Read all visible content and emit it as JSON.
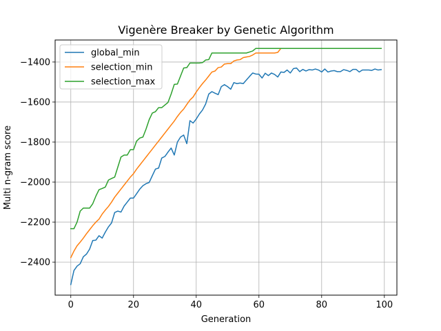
{
  "chart_data": {
    "type": "line",
    "title": "Vigenère Breaker by Genetic Algorithm",
    "xlabel": "Generation",
    "ylabel": "Multi n-gram score",
    "xlim": [
      -5,
      104
    ],
    "ylim": [
      -2565,
      -1290
    ],
    "xticks": [
      0,
      20,
      40,
      60,
      80,
      100
    ],
    "yticks": [
      -2400,
      -2200,
      -2000,
      -1800,
      -1600,
      -1400
    ],
    "xtick_labels": [
      "0",
      "20",
      "40",
      "60",
      "80",
      "100"
    ],
    "ytick_labels": [
      "−2400",
      "−2200",
      "−2000",
      "−1800",
      "−1600",
      "−1400"
    ],
    "grid": true,
    "legend_position": "top-left",
    "series": [
      {
        "name": "global_min",
        "color": "#1f77b4",
        "values": [
          -2512,
          -2442,
          -2420,
          -2408,
          -2373,
          -2360,
          -2335,
          -2292,
          -2290,
          -2268,
          -2280,
          -2250,
          -2224,
          -2204,
          -2152,
          -2145,
          -2150,
          -2120,
          -2100,
          -2080,
          -2080,
          -2058,
          -2035,
          -2018,
          -2008,
          -2002,
          -1968,
          -1935,
          -1930,
          -1880,
          -1872,
          -1850,
          -1830,
          -1865,
          -1800,
          -1775,
          -1765,
          -1808,
          -1693,
          -1705,
          -1685,
          -1660,
          -1640,
          -1610,
          -1560,
          -1548,
          -1556,
          -1563,
          -1523,
          -1513,
          -1523,
          -1536,
          -1503,
          -1508,
          -1505,
          -1508,
          -1490,
          -1472,
          -1455,
          -1460,
          -1461,
          -1480,
          -1456,
          -1468,
          -1455,
          -1462,
          -1475,
          -1450,
          -1452,
          -1440,
          -1455,
          -1433,
          -1430,
          -1448,
          -1437,
          -1445,
          -1438,
          -1440,
          -1435,
          -1440,
          -1450,
          -1435,
          -1450,
          -1445,
          -1443,
          -1448,
          -1448,
          -1438,
          -1442,
          -1448,
          -1437,
          -1437,
          -1450,
          -1440,
          -1440,
          -1440,
          -1442,
          -1435,
          -1440,
          -1438
        ]
      },
      {
        "name": "selection_min",
        "color": "#ff7f0e",
        "values": [
          -2377,
          -2345,
          -2318,
          -2300,
          -2280,
          -2258,
          -2238,
          -2218,
          -2200,
          -2185,
          -2160,
          -2140,
          -2122,
          -2100,
          -2075,
          -2055,
          -2035,
          -2015,
          -1995,
          -1975,
          -1958,
          -1935,
          -1915,
          -1895,
          -1875,
          -1855,
          -1835,
          -1815,
          -1795,
          -1775,
          -1755,
          -1735,
          -1715,
          -1695,
          -1672,
          -1652,
          -1635,
          -1612,
          -1590,
          -1575,
          -1550,
          -1528,
          -1508,
          -1490,
          -1470,
          -1450,
          -1445,
          -1428,
          -1425,
          -1410,
          -1408,
          -1408,
          -1395,
          -1390,
          -1388,
          -1378,
          -1375,
          -1372,
          -1365,
          -1355,
          -1355,
          -1355,
          -1355,
          -1355,
          -1355,
          -1355,
          -1352,
          -1332,
          -1332,
          -1332,
          -1332,
          -1332,
          -1332,
          -1332,
          -1332,
          -1332,
          -1332,
          -1332,
          -1332,
          -1332,
          -1332,
          -1332,
          -1332,
          -1332,
          -1332,
          -1332,
          -1332,
          -1332,
          -1332,
          -1332,
          -1332,
          -1332,
          -1332,
          -1332,
          -1332,
          -1332,
          -1332,
          -1332,
          -1332,
          -1332
        ]
      },
      {
        "name": "selection_max",
        "color": "#2ca02c",
        "values": [
          -2233,
          -2233,
          -2200,
          -2145,
          -2130,
          -2130,
          -2130,
          -2108,
          -2070,
          -2038,
          -2032,
          -2025,
          -1990,
          -1982,
          -1975,
          -1925,
          -1875,
          -1865,
          -1865,
          -1838,
          -1838,
          -1795,
          -1780,
          -1775,
          -1735,
          -1688,
          -1655,
          -1648,
          -1628,
          -1628,
          -1615,
          -1602,
          -1560,
          -1512,
          -1510,
          -1470,
          -1430,
          -1428,
          -1405,
          -1405,
          -1405,
          -1405,
          -1403,
          -1390,
          -1388,
          -1355,
          -1355,
          -1355,
          -1355,
          -1355,
          -1355,
          -1355,
          -1355,
          -1355,
          -1355,
          -1355,
          -1355,
          -1350,
          -1345,
          -1332,
          -1332,
          -1332,
          -1332,
          -1332,
          -1332,
          -1332,
          -1332,
          -1332,
          -1332,
          -1332,
          -1332,
          -1332,
          -1332,
          -1332,
          -1332,
          -1332,
          -1332,
          -1332,
          -1332,
          -1332,
          -1332,
          -1332,
          -1332,
          -1332,
          -1332,
          -1332,
          -1332,
          -1332,
          -1332,
          -1332,
          -1332,
          -1332,
          -1332,
          -1332,
          -1332,
          -1332,
          -1332,
          -1332,
          -1332,
          -1332
        ]
      }
    ]
  }
}
